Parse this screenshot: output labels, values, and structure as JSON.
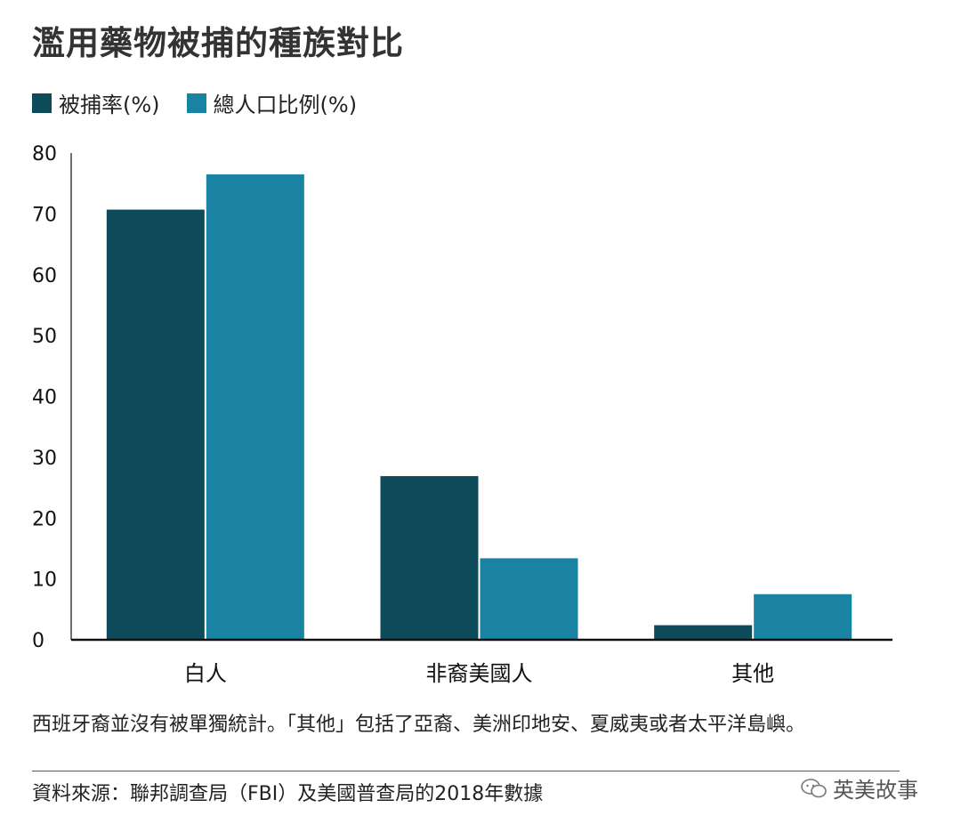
{
  "title": "濫用藥物被捕的種族對比",
  "legend": [
    {
      "label": "被捕率(%)",
      "color": "#0d4a5a"
    },
    {
      "label": "總人口比例(%)",
      "color": "#1a82a3"
    }
  ],
  "chart_data": {
    "type": "bar",
    "title": "濫用藥物被捕的種族對比",
    "categories": [
      "白人",
      "非裔美國人",
      "其他"
    ],
    "series": [
      {
        "name": "被捕率(%)",
        "values": [
          70.7,
          26.9,
          2.4
        ],
        "color": "#0d4a5a"
      },
      {
        "name": "總人口比例(%)",
        "values": [
          76.5,
          13.4,
          7.5
        ],
        "color": "#1a82a3"
      }
    ],
    "yticks": [
      0,
      10,
      20,
      30,
      40,
      50,
      60,
      70,
      80
    ],
    "ylim": [
      0,
      80
    ],
    "xlabel": "",
    "ylabel": "",
    "grid": false,
    "legend_position": "top-left"
  },
  "footnote": "西班牙裔並沒有被單獨統計。「其他」包括了亞裔、美洲印地安、夏威夷或者太平洋島嶼。",
  "source": "資料來源：聯邦調查局（FBI）及美國普查局的2018年數據",
  "watermark": {
    "text": "英美故事",
    "icon": "wechat-icon"
  }
}
